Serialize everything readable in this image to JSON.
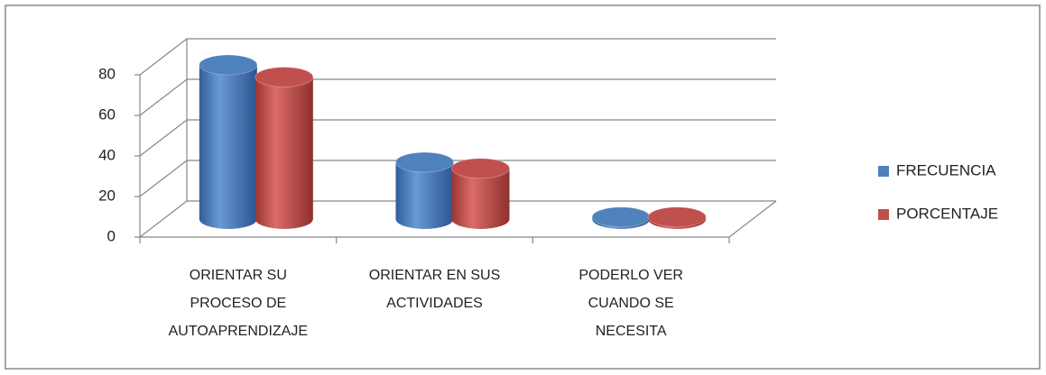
{
  "chart_data": {
    "type": "bar3d",
    "categories": [
      "ORIENTAR SU PROCESO DE AUTOAPRENDIZAJE",
      "ORIENTAR EN SUS ACTIVIDADES",
      "PODERLO VER CUANDO SE NECESITA"
    ],
    "series": [
      {
        "name": "FRECUENCIA",
        "color": "#4f81bd",
        "values": [
          76,
          28,
          1
        ]
      },
      {
        "name": "PORCENTAJE",
        "color": "#c0504d",
        "values": [
          70,
          25,
          1
        ]
      }
    ],
    "ylim": [
      0,
      80
    ],
    "yticks": [
      0,
      20,
      40,
      60,
      80
    ],
    "grid": true,
    "legend": "right"
  }
}
